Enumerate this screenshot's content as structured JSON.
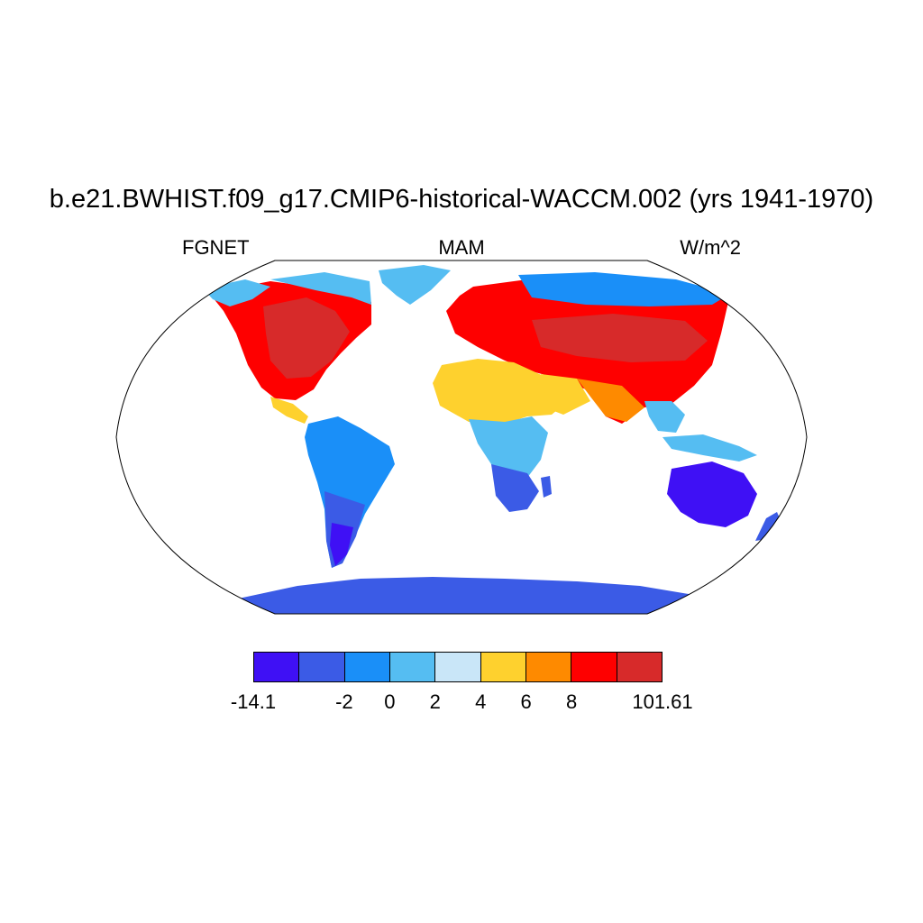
{
  "title": "b.e21.BWHIST.f09_g17.CMIP6-historical-WACCM.002 (yrs 1941-1970)",
  "left_label": "FGNET",
  "center_label": "MAM",
  "right_label": "W/m^2",
  "colorbar": {
    "colors": [
      "#3f10f5",
      "#3b5be6",
      "#1a8ff8",
      "#55bdf2",
      "#c9e6f8",
      "#fed12e",
      "#fe8a00",
      "#fe0000",
      "#d72a2a"
    ],
    "labels": [
      "-14.1",
      "",
      "-2",
      "0",
      "2",
      "4",
      "6",
      "8",
      "",
      "101.61"
    ]
  },
  "map": {
    "projection": "robinson",
    "outline_color": "#000000",
    "land_colors": [
      "#fe0000",
      "#fed12e",
      "#1a8ff8",
      "#3b5be6",
      "#3f10f5",
      "#55bdf2",
      "#d72a2a",
      "#fe8a00"
    ]
  }
}
